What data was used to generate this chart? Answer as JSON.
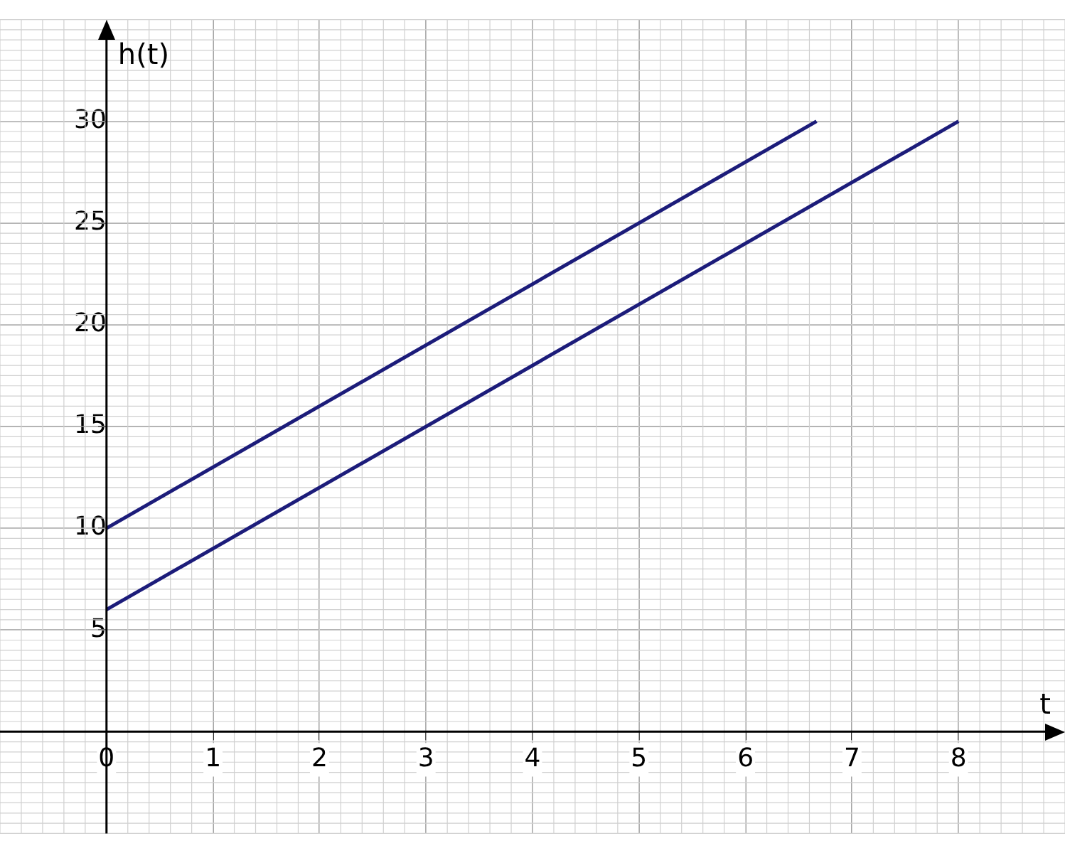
{
  "chart_data": {
    "type": "line",
    "xlabel": "t",
    "ylabel": "h(t)",
    "series": [
      {
        "color": "#1c1c7a",
        "x": [
          0,
          6.667
        ],
        "values": [
          10,
          30
        ]
      },
      {
        "color": "#1c1c7a",
        "x": [
          0,
          8
        ],
        "values": [
          6,
          30
        ]
      }
    ],
    "xlim": [
      -1,
      9
    ],
    "ylim": [
      -5,
      35
    ],
    "xticks": [
      0,
      1,
      2,
      3,
      4,
      5,
      6,
      7,
      8
    ],
    "yticks": [
      5,
      10,
      15,
      20,
      25,
      30
    ],
    "grid": true,
    "legend": false,
    "marker": "none",
    "line_style": "solid"
  }
}
